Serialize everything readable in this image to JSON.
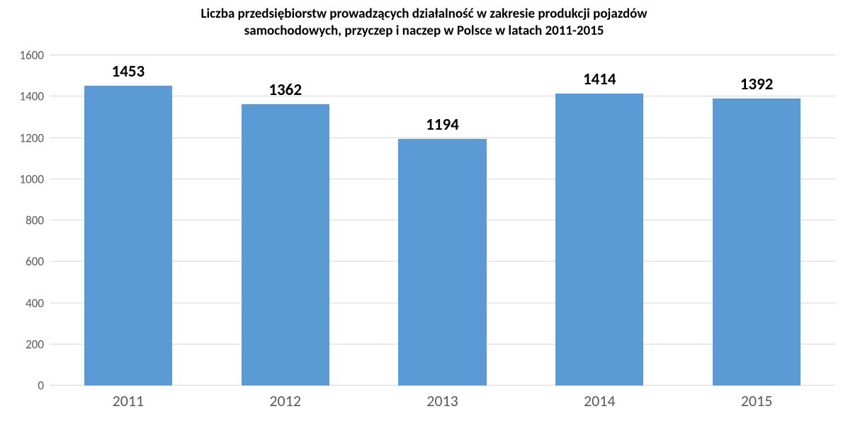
{
  "chart": {
    "type": "bar",
    "title_line1": "Liczba przedsiębiorstw prowadzących działalność w zakresie produkcji pojazdów",
    "title_line2": "samochodowych, przyczep i naczep w Polsce w latach 2011-2015",
    "title_fontsize": 19,
    "title_color": "#000000",
    "categories": [
      "2011",
      "2012",
      "2013",
      "2014",
      "2015"
    ],
    "values": [
      1453,
      1362,
      1194,
      1414,
      1392
    ],
    "bar_color": "#5b9bd5",
    "bar_width_ratio": 0.56,
    "ylim": [
      0,
      1600
    ],
    "ytick_step": 200,
    "yticks": [
      0,
      200,
      400,
      600,
      800,
      1000,
      1200,
      1400,
      1600
    ],
    "grid_color": "#d9d9d9",
    "axis_label_color": "#595959",
    "axis_label_fontsize": 17,
    "xaxis_label_fontsize": 22,
    "value_label_fontsize": 23,
    "value_label_color": "#000000",
    "background_color": "#ffffff"
  }
}
